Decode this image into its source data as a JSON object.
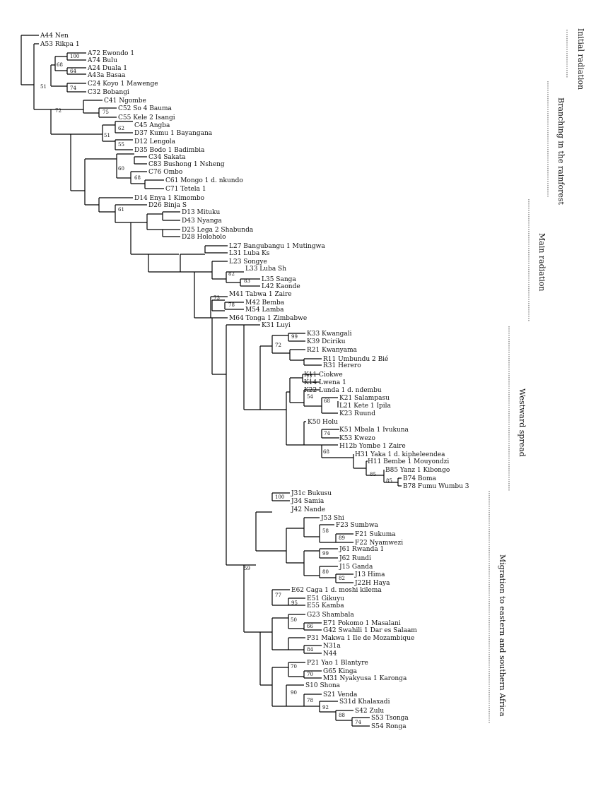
{
  "taxa": [
    "A44 Nen",
    "A53 Rikpa 1",
    "A72 Ewondo 1",
    "A74 Bulu",
    "A24 Duala 1",
    "A43a Basaa",
    "C24 Koyo 1 Mawenge",
    "C32 Bobangi",
    "C41 Ngombe",
    "C52 So 4 Bauma",
    "C55 Kele 2 Isangi",
    "C45 Angba",
    "D37 Kumu 1 Bayangana",
    "D12 Lengola",
    "D35 Bodo 1 Badimbia",
    "C34 Sakata",
    "C83 Bushong 1 Nsheng",
    "C76 Ombo",
    "C61 Mongo 1 d. nkundo",
    "C71 Tetela 1",
    "D14 Enya 1 Kimombo",
    "D26 Binja S",
    "D13 Mituku",
    "D43 Nyanga",
    "D25 Lega 2 Shabunda",
    "D28 Holoholo",
    "L27 Bangubangu 1 Mutingwa",
    "L31 Luba Ks",
    "L23 Songye",
    "L33 Luba Sh",
    "L35 Sanga",
    "L42 Kaonde",
    "M41 Tabwa 1 Zaire",
    "M42 Bemba",
    "M54 Lamba",
    "M64 Tonga 1 Zimbabwe",
    "K31 Luyi",
    "K33 Kwangali",
    "K39 Dciriku",
    "R21 Kwanyama",
    "R11 Umbundu 2 Bié",
    "R31 Herero",
    "K11 Ciokwe",
    "K14 Lwena 1",
    "K22 Lunda 1 d. ndembu",
    "K21 Salampasu",
    "L21 Kete 1 Ipila",
    "K23 Ruund",
    "K50 Holu",
    "K51 Mbala 1 Ivukuna",
    "K53 Kwezo",
    "H12b Yombe 1 Zaire",
    "H31 Yaka 1 d. kipheleendea",
    "H11 Bembe 1 Mouyondzi",
    "B85 Yanz 1 Kibongo",
    "B74 Boma",
    "B78 Fumu Wumbu 3",
    "J31c Bukusu",
    "J34 Samia",
    "J42 Nande",
    "J53 Shi",
    "F23 Sumbwa",
    "F21 Sukuma",
    "F22 Nyamwezi",
    "J61 Rwanda 1",
    "J62 Rundi",
    "J15 Ganda",
    "J13 Hima",
    "J22H Haya",
    "E62 Caga 1 d. moshi kilema",
    "E51 Gikuyu",
    "E55 Kamba",
    "G23 Shambala",
    "E71 Pokomo 1 Masalani",
    "G42 Swahili 1 Dar es Salaam",
    "P31 Makwa 1 Ile de Mozambique",
    "N31a",
    "N44",
    "P21 Yao 1 Blantyre",
    "G65 Kinga",
    "M31 Nyakyusa 1 Karonga",
    "S10 Shona",
    "S21 Venda",
    "S31d Khalaxadi",
    "S42 Zulu",
    "S53 Tsonga",
    "S54 Ronga"
  ],
  "bootstrap": [
    "100",
    "68",
    "64",
    "51",
    "74",
    "72",
    "75",
    "62",
    "51",
    "55",
    "60",
    "68",
    "61",
    "82",
    "83",
    "73",
    "78",
    "99",
    "72",
    "77",
    "54",
    "68",
    "74",
    "68",
    "85",
    "85",
    "59",
    "100",
    "58",
    "89",
    "99",
    "80",
    "82",
    "77",
    "95",
    "50",
    "66",
    "84",
    "70",
    "70",
    "90",
    "78",
    "92",
    "88",
    "74"
  ],
  "groups": [
    "Initial radiation",
    "Branching in the rainforest",
    "Main radiation",
    "Westward spread",
    "Migration to eastern and southern Africa"
  ]
}
